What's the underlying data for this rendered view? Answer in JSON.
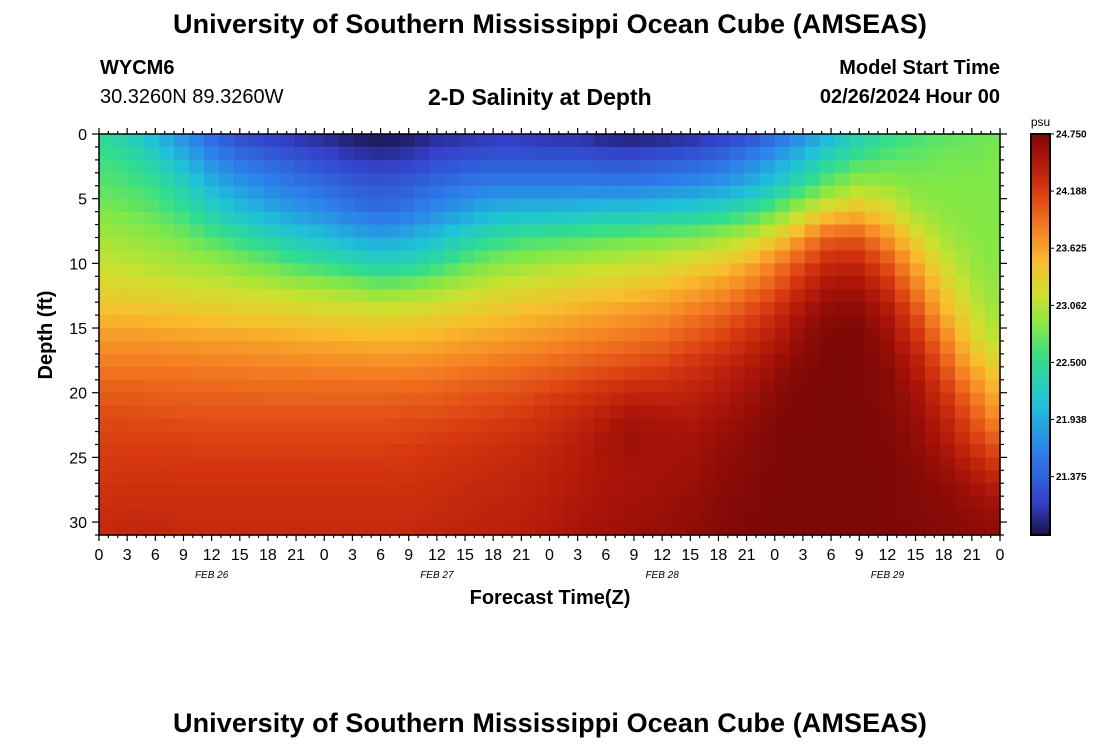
{
  "header": {
    "title": "University of Southern Mississippi Ocean Cube (AMSEAS)",
    "station": "WYCM6",
    "coords": "30.3260N  89.3260W",
    "plot_title": "2-D Salinity at Depth",
    "model_start_label": "Model Start Time",
    "model_start_value": "02/26/2024 Hour 00"
  },
  "footer": {
    "title": "University of Southern Mississippi Ocean Cube (AMSEAS)"
  },
  "chart_data": {
    "type": "heatmap",
    "title": "2-D Salinity at Depth",
    "xlabel": "Forecast Time(Z)",
    "ylabel": "Depth (ft)",
    "x_hours_range": [
      0,
      96
    ],
    "x_tick_labels": [
      "0",
      "3",
      "6",
      "9",
      "12",
      "15",
      "18",
      "21",
      "0",
      "3",
      "6",
      "9",
      "12",
      "15",
      "18",
      "21",
      "0",
      "3",
      "6",
      "9",
      "12",
      "15",
      "18",
      "21",
      "0",
      "3",
      "6",
      "9",
      "12",
      "15",
      "18",
      "21",
      "0"
    ],
    "date_labels": [
      {
        "hour": 12,
        "label": "FEB 26"
      },
      {
        "hour": 36,
        "label": "FEB 27"
      },
      {
        "hour": 60,
        "label": "FEB 28"
      },
      {
        "hour": 84,
        "label": "FEB 29"
      }
    ],
    "y_range": [
      0,
      31
    ],
    "y_ticks": [
      0,
      5,
      10,
      15,
      20,
      25,
      30
    ],
    "colorbar": {
      "unit": "psu",
      "min": 20.8,
      "max": 24.75,
      "tick_labels": [
        "24.750",
        "24.188",
        "23.625",
        "23.062",
        "22.500",
        "21.938",
        "21.375"
      ],
      "tick_values": [
        24.75,
        24.188,
        23.625,
        23.062,
        22.5,
        21.938,
        21.375
      ]
    },
    "grid_hours": [
      0,
      3,
      6,
      9,
      12,
      15,
      18,
      21,
      24,
      27,
      30,
      33,
      36,
      39,
      42,
      45,
      48,
      51,
      54,
      57,
      60,
      63,
      66,
      69,
      72,
      75,
      78,
      81,
      84,
      87,
      90,
      93,
      96
    ],
    "grid_depths": [
      0,
      2,
      4,
      6,
      8,
      10,
      12,
      14,
      16,
      18,
      20,
      22,
      24,
      26,
      28,
      30,
      31
    ],
    "field": [
      [
        22.5,
        22.3,
        22.0,
        21.7,
        21.4,
        21.2,
        21.1,
        21.0,
        20.95,
        20.85,
        20.8,
        20.85,
        20.95,
        21.0,
        21.05,
        21.05,
        21.0,
        21.0,
        20.9,
        20.85,
        20.9,
        20.95,
        21.05,
        21.2,
        21.4,
        21.7,
        22.0,
        22.3,
        22.5,
        22.6,
        22.7,
        22.75,
        22.8
      ],
      [
        22.6,
        22.5,
        22.3,
        22.0,
        21.7,
        21.5,
        21.4,
        21.3,
        21.2,
        21.1,
        21.05,
        21.1,
        21.2,
        21.25,
        21.3,
        21.3,
        21.3,
        21.3,
        21.25,
        21.25,
        21.3,
        21.35,
        21.45,
        21.6,
        21.85,
        22.1,
        22.4,
        22.6,
        22.7,
        22.75,
        22.8,
        22.8,
        22.85
      ],
      [
        22.7,
        22.65,
        22.55,
        22.3,
        22.0,
        21.8,
        21.65,
        21.55,
        21.45,
        21.35,
        21.3,
        21.35,
        21.45,
        21.55,
        21.6,
        21.6,
        21.6,
        21.6,
        21.6,
        21.6,
        21.65,
        21.7,
        21.8,
        21.95,
        22.2,
        22.5,
        22.8,
        23.0,
        22.95,
        22.85,
        22.85,
        22.85,
        22.85
      ],
      [
        22.85,
        22.8,
        22.7,
        22.55,
        22.3,
        22.1,
        21.95,
        21.8,
        21.7,
        21.55,
        21.45,
        21.55,
        21.7,
        21.85,
        22.0,
        22.05,
        22.05,
        22.1,
        22.15,
        22.15,
        22.2,
        22.25,
        22.35,
        22.5,
        22.75,
        23.1,
        23.4,
        23.5,
        23.3,
        23.0,
        22.9,
        22.85,
        22.85
      ],
      [
        23.0,
        22.95,
        22.9,
        22.8,
        22.65,
        22.5,
        22.35,
        22.2,
        22.1,
        21.95,
        21.85,
        21.95,
        22.1,
        22.3,
        22.45,
        22.55,
        22.6,
        22.65,
        22.7,
        22.75,
        22.8,
        22.85,
        22.95,
        23.1,
        23.35,
        23.7,
        24.0,
        24.0,
        23.7,
        23.3,
        23.0,
        22.9,
        22.85
      ],
      [
        23.15,
        23.1,
        23.05,
        23.0,
        22.95,
        22.85,
        22.75,
        22.6,
        22.5,
        22.4,
        22.3,
        22.35,
        22.5,
        22.7,
        22.85,
        22.95,
        23.0,
        23.05,
        23.1,
        23.15,
        23.2,
        23.3,
        23.4,
        23.55,
        23.8,
        24.1,
        24.35,
        24.35,
        24.05,
        23.6,
        23.2,
        22.95,
        22.85
      ],
      [
        23.3,
        23.28,
        23.25,
        23.2,
        23.18,
        23.15,
        23.1,
        23.05,
        23.0,
        22.95,
        22.85,
        22.9,
        23.0,
        23.1,
        23.2,
        23.25,
        23.3,
        23.35,
        23.4,
        23.45,
        23.5,
        23.6,
        23.7,
        23.85,
        24.05,
        24.35,
        24.55,
        24.55,
        24.3,
        23.85,
        23.4,
        23.05,
        22.9
      ],
      [
        23.5,
        23.5,
        23.48,
        23.45,
        23.43,
        23.4,
        23.38,
        23.35,
        23.32,
        23.3,
        23.28,
        23.3,
        23.35,
        23.4,
        23.45,
        23.5,
        23.55,
        23.6,
        23.65,
        23.7,
        23.75,
        23.85,
        23.95,
        24.1,
        24.3,
        24.55,
        24.7,
        24.7,
        24.5,
        24.1,
        23.6,
        23.2,
        22.95
      ],
      [
        23.7,
        23.7,
        23.7,
        23.68,
        23.66,
        23.65,
        23.63,
        23.6,
        23.58,
        23.56,
        23.55,
        23.55,
        23.58,
        23.62,
        23.66,
        23.7,
        23.75,
        23.8,
        23.85,
        23.9,
        23.95,
        24.05,
        24.15,
        24.3,
        24.45,
        24.65,
        24.75,
        24.75,
        24.6,
        24.3,
        23.85,
        23.35,
        23.05
      ],
      [
        23.85,
        23.85,
        23.85,
        23.84,
        23.83,
        23.82,
        23.8,
        23.8,
        23.78,
        23.78,
        23.77,
        23.77,
        23.8,
        23.83,
        23.87,
        23.9,
        23.95,
        24.0,
        24.05,
        24.1,
        24.15,
        24.25,
        24.35,
        24.45,
        24.6,
        24.72,
        24.75,
        24.75,
        24.68,
        24.45,
        24.05,
        23.6,
        23.3
      ],
      [
        24.0,
        24.0,
        23.98,
        23.97,
        23.96,
        23.96,
        23.95,
        23.95,
        23.95,
        23.95,
        23.95,
        23.96,
        23.98,
        24.02,
        24.05,
        24.08,
        24.15,
        24.2,
        24.28,
        24.35,
        24.35,
        24.38,
        24.45,
        24.55,
        24.68,
        24.75,
        24.75,
        24.75,
        24.7,
        24.55,
        24.25,
        23.85,
        23.5
      ],
      [
        24.1,
        24.1,
        24.08,
        24.07,
        24.06,
        24.06,
        24.06,
        24.06,
        24.06,
        24.06,
        24.06,
        24.08,
        24.1,
        24.13,
        24.16,
        24.2,
        24.28,
        24.35,
        24.45,
        24.55,
        24.5,
        24.48,
        24.55,
        24.63,
        24.72,
        24.75,
        24.75,
        24.75,
        24.72,
        24.62,
        24.4,
        24.05,
        23.7
      ],
      [
        24.15,
        24.17,
        24.17,
        24.16,
        24.15,
        24.15,
        24.15,
        24.15,
        24.15,
        24.15,
        24.15,
        24.17,
        24.2,
        24.23,
        24.26,
        24.3,
        24.35,
        24.42,
        24.52,
        24.58,
        24.55,
        24.55,
        24.62,
        24.68,
        24.74,
        24.75,
        24.75,
        24.75,
        24.73,
        24.66,
        24.5,
        24.25,
        24.0
      ],
      [
        24.2,
        24.23,
        24.23,
        24.22,
        24.22,
        24.22,
        24.22,
        24.22,
        24.22,
        24.22,
        24.22,
        24.24,
        24.26,
        24.29,
        24.32,
        24.35,
        24.4,
        24.45,
        24.5,
        24.53,
        24.55,
        24.58,
        24.65,
        24.7,
        24.74,
        24.75,
        24.75,
        24.75,
        24.74,
        24.7,
        24.62,
        24.45,
        24.25
      ],
      [
        24.25,
        24.28,
        24.28,
        24.28,
        24.27,
        24.27,
        24.27,
        24.27,
        24.27,
        24.27,
        24.27,
        24.28,
        24.3,
        24.33,
        24.35,
        24.38,
        24.42,
        24.47,
        24.52,
        24.55,
        24.58,
        24.62,
        24.68,
        24.72,
        24.75,
        24.75,
        24.75,
        24.75,
        24.74,
        24.72,
        24.68,
        24.6,
        24.5
      ],
      [
        24.3,
        24.33,
        24.32,
        24.31,
        24.3,
        24.3,
        24.3,
        24.3,
        24.3,
        24.3,
        24.3,
        24.31,
        24.33,
        24.36,
        24.38,
        24.41,
        24.45,
        24.5,
        24.55,
        24.58,
        24.6,
        24.64,
        24.7,
        24.73,
        24.75,
        24.75,
        24.75,
        24.75,
        24.74,
        24.72,
        24.7,
        24.66,
        24.62
      ],
      [
        24.32,
        24.35,
        24.34,
        24.33,
        24.32,
        24.32,
        24.32,
        24.32,
        24.32,
        24.32,
        24.32,
        24.33,
        24.35,
        24.38,
        24.4,
        24.43,
        24.47,
        24.52,
        24.56,
        24.59,
        24.62,
        24.66,
        24.71,
        24.74,
        24.75,
        24.75,
        24.75,
        24.75,
        24.75,
        24.73,
        24.71,
        24.68,
        24.65
      ]
    ]
  }
}
